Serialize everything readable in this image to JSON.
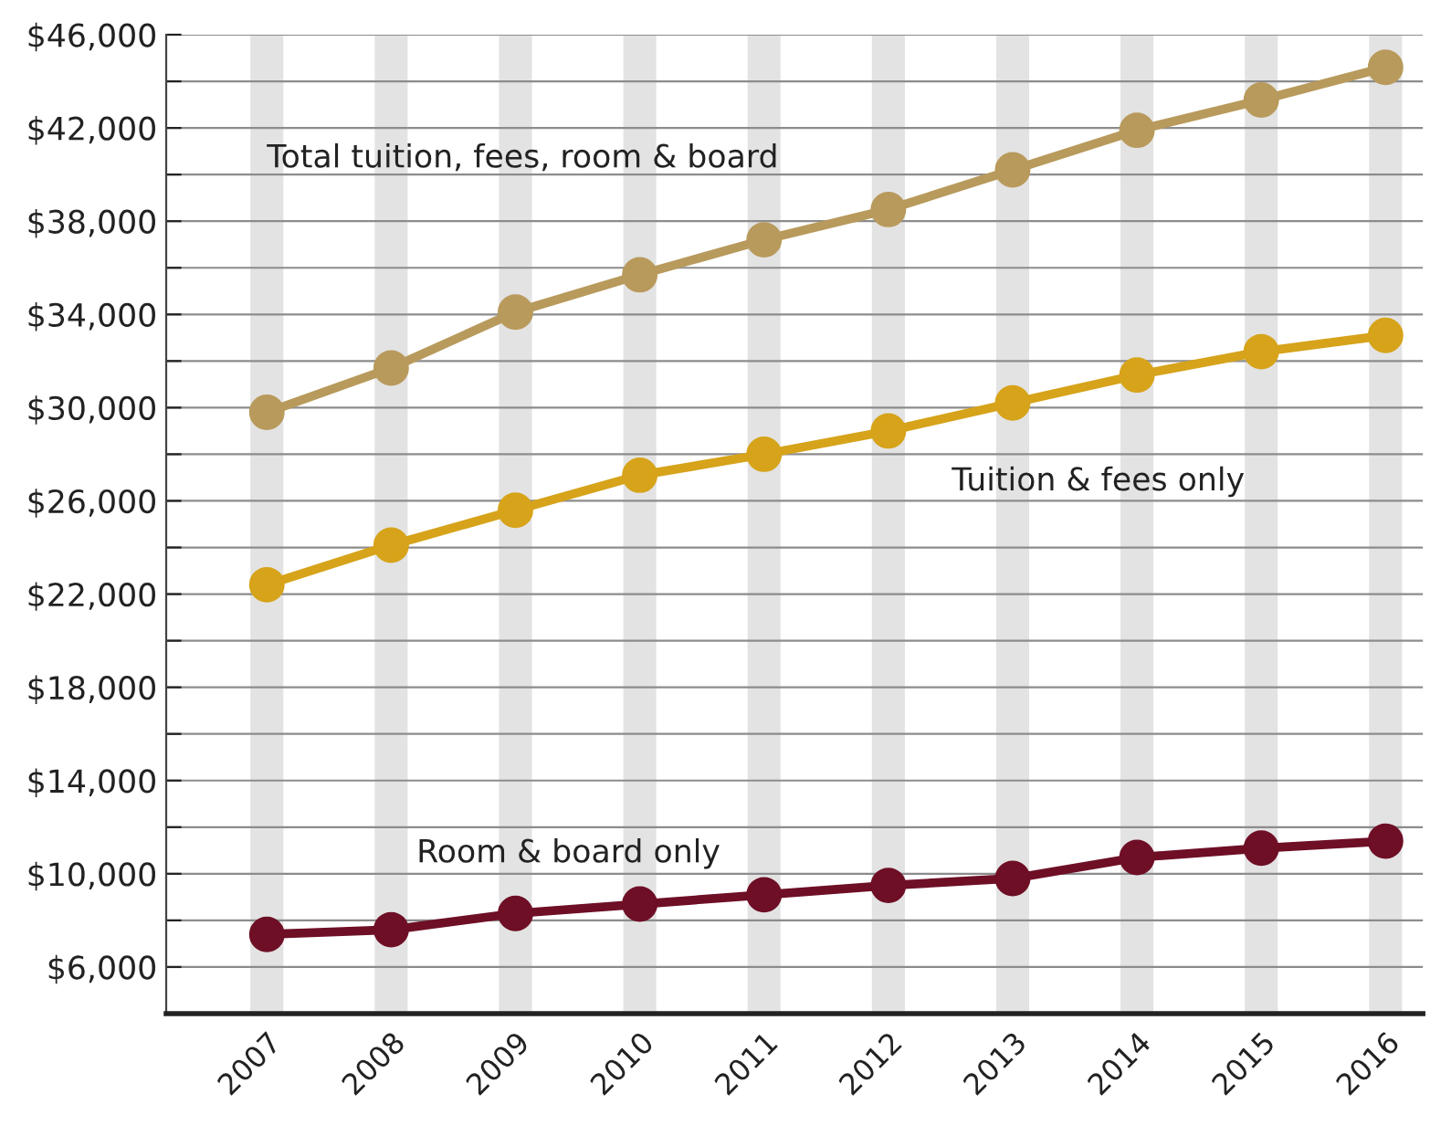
{
  "chart_data": {
    "type": "line",
    "categories": [
      "2007",
      "2008",
      "2009",
      "2010",
      "2011",
      "2012",
      "2013",
      "2014",
      "2015",
      "2016"
    ],
    "series": [
      {
        "name": "Total tuition, fees, room & board",
        "color": "#b89a5c",
        "values": [
          29800,
          31700,
          34100,
          35700,
          37200,
          38500,
          40200,
          41900,
          43200,
          44600
        ]
      },
      {
        "name": "Tuition & fees only",
        "color": "#d6a31a",
        "values": [
          22400,
          24100,
          25600,
          27100,
          28000,
          29000,
          30200,
          31400,
          32400,
          33100
        ]
      },
      {
        "name": "Room & board only",
        "color": "#6e0f26",
        "values": [
          7400,
          7600,
          8300,
          8700,
          9100,
          9500,
          9800,
          10700,
          11100,
          11400
        ]
      }
    ],
    "ylim": [
      4000,
      46000
    ],
    "yticks": [
      {
        "value": 6000,
        "label": "$6,000"
      },
      {
        "value": 8000,
        "label": null
      },
      {
        "value": 10000,
        "label": "$10,000"
      },
      {
        "value": 12000,
        "label": null
      },
      {
        "value": 14000,
        "label": "$14,000"
      },
      {
        "value": 16000,
        "label": null
      },
      {
        "value": 18000,
        "label": "$18,000"
      },
      {
        "value": 20000,
        "label": null
      },
      {
        "value": 22000,
        "label": "$22,000"
      },
      {
        "value": 24000,
        "label": null
      },
      {
        "value": 26000,
        "label": "$26,000"
      },
      {
        "value": 28000,
        "label": null
      },
      {
        "value": 30000,
        "label": "$30,000"
      },
      {
        "value": 32000,
        "label": null
      },
      {
        "value": 34000,
        "label": "$34,000"
      },
      {
        "value": 36000,
        "label": null
      },
      {
        "value": 38000,
        "label": "$38,000"
      },
      {
        "value": 40000,
        "label": null
      },
      {
        "value": 42000,
        "label": "$42,000"
      },
      {
        "value": 44000,
        "label": null
      },
      {
        "value": 46000,
        "label": "$46,000"
      }
    ],
    "grid": true,
    "marker": "circle",
    "line_style": "solid",
    "legend": false
  }
}
